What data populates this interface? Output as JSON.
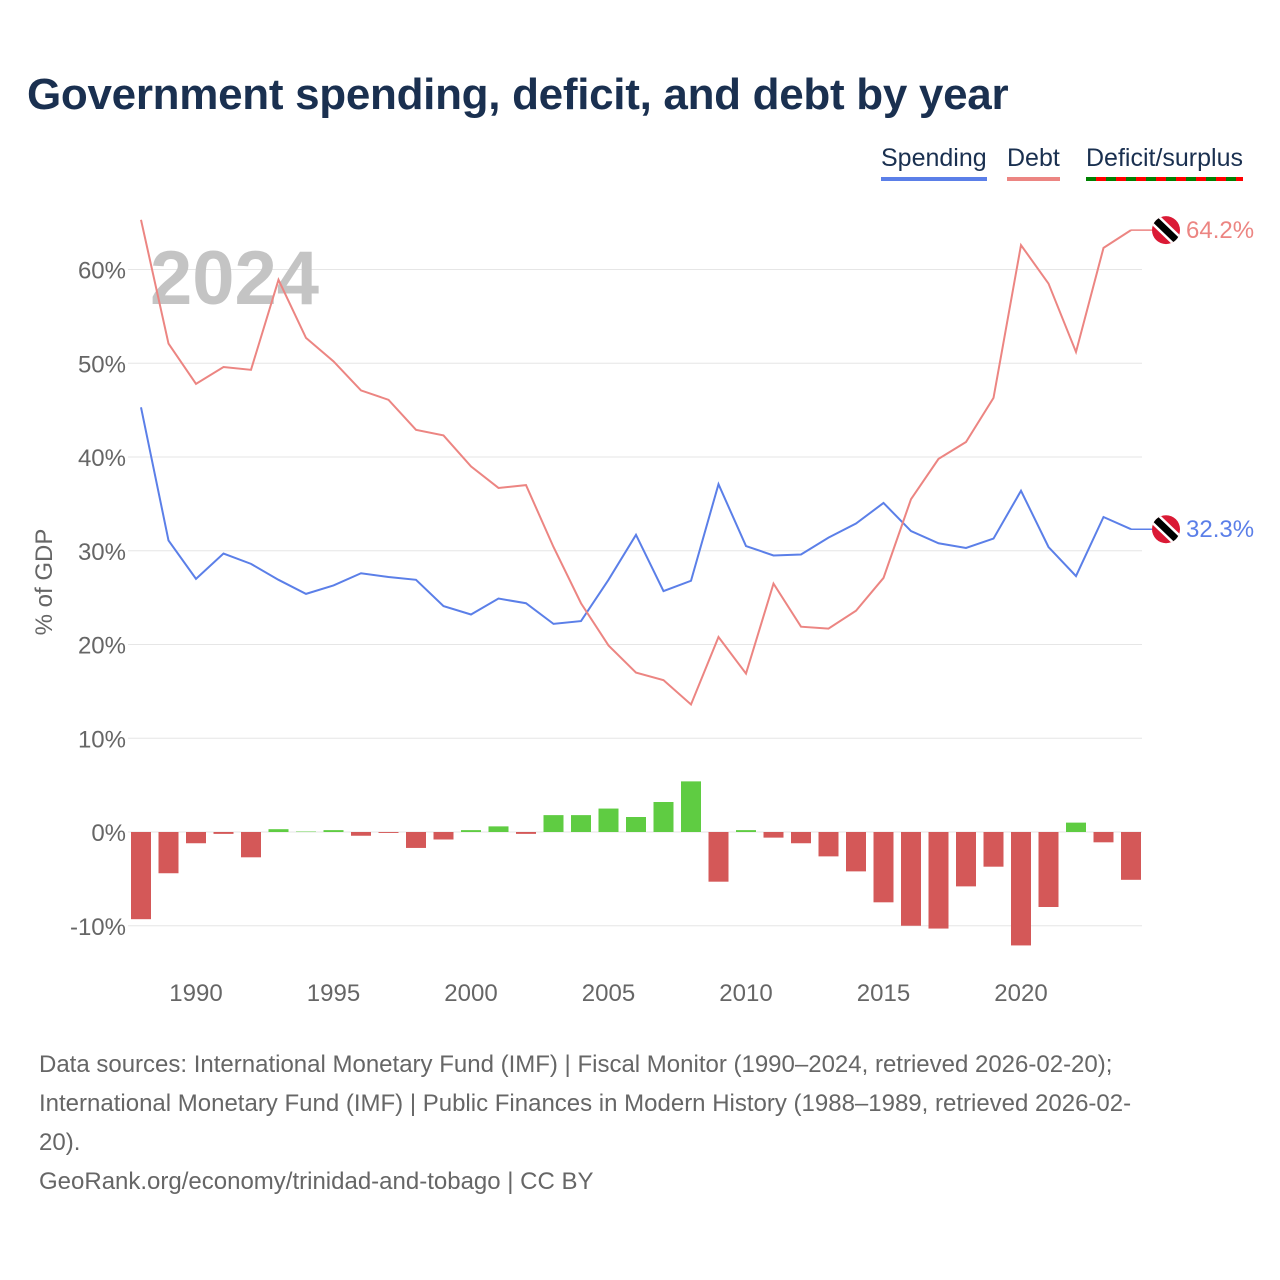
{
  "title": "Government spending, deficit, and debt by year",
  "legend": {
    "spending": "Spending",
    "debt": "Debt",
    "deficit": "Deficit/surplus"
  },
  "year_watermark": "2024",
  "end_labels": {
    "debt": "64.2%",
    "spending": "32.3%"
  },
  "source_lines": [
    "Data sources: International Monetary Fund (IMF) | Fiscal Monitor (1990–2024, retrieved 2026-02-20);",
    "International Monetary Fund (IMF) | Public Finances in Modern History (1988–1989, retrieved 2026-02-",
    "20).",
    "GeoRank.org/economy/trinidad-and-tobago | CC BY"
  ],
  "colors": {
    "spending": "#5b7fe8",
    "debt": "#ec8582",
    "surplus": "#5fcc42",
    "deficit": "#d45858",
    "title": "#1a3050"
  },
  "chart_data": {
    "type": "line+bar",
    "ylabel": "% of GDP",
    "ylim": [
      -15,
      67
    ],
    "yticks": [
      -10,
      0,
      10,
      20,
      30,
      40,
      50,
      60
    ],
    "ytick_labels": [
      "-10%",
      "0%",
      "10%",
      "20%",
      "30%",
      "40%",
      "50%",
      "60%"
    ],
    "xticks": [
      1990,
      1995,
      2000,
      2005,
      2010,
      2015,
      2020
    ],
    "xtick_labels": [
      "1990",
      "1995",
      "2000",
      "2005",
      "2010",
      "2015",
      "2020"
    ],
    "grid": true,
    "legend_placement": "top-right",
    "x": [
      1988,
      1989,
      1990,
      1991,
      1992,
      1993,
      1994,
      1995,
      1996,
      1997,
      1998,
      1999,
      2000,
      2001,
      2002,
      2003,
      2004,
      2005,
      2006,
      2007,
      2008,
      2009,
      2010,
      2011,
      2012,
      2013,
      2014,
      2015,
      2016,
      2017,
      2018,
      2019,
      2020,
      2021,
      2022,
      2023,
      2024
    ],
    "series": [
      {
        "name": "Spending",
        "type": "line",
        "values": [
          45.3,
          31.1,
          27.0,
          29.7,
          28.6,
          26.9,
          25.4,
          26.3,
          27.6,
          27.2,
          26.9,
          24.1,
          23.2,
          24.9,
          24.4,
          22.2,
          22.5,
          26.9,
          31.7,
          25.7,
          26.8,
          37.1,
          30.5,
          29.5,
          29.6,
          31.4,
          32.9,
          35.1,
          32.1,
          30.8,
          30.3,
          31.3,
          36.4,
          30.4,
          27.3,
          33.6,
          32.3
        ]
      },
      {
        "name": "Debt",
        "type": "line",
        "values": [
          65.3,
          52.1,
          47.8,
          49.6,
          49.3,
          58.9,
          52.7,
          50.2,
          47.1,
          46.1,
          42.9,
          42.3,
          39.0,
          36.7,
          37.0,
          30.4,
          24.4,
          19.9,
          17.0,
          16.2,
          13.6,
          20.8,
          16.9,
          26.5,
          21.9,
          21.7,
          23.6,
          27.1,
          35.5,
          39.8,
          41.6,
          46.3,
          62.6,
          58.5,
          51.2,
          62.3,
          64.2
        ]
      },
      {
        "name": "Deficit/surplus",
        "type": "bar",
        "values": [
          -9.3,
          -4.4,
          -1.2,
          -0.2,
          -2.7,
          0.3,
          0.05,
          0.2,
          -0.4,
          -0.1,
          -1.7,
          -0.8,
          0.2,
          0.6,
          -0.2,
          1.8,
          1.8,
          2.5,
          1.6,
          3.2,
          5.4,
          -5.3,
          0.2,
          -0.6,
          -1.2,
          -2.6,
          -4.2,
          -7.5,
          -10.0,
          -10.3,
          -5.8,
          -3.7,
          -12.1,
          -8.0,
          1.0,
          -1.1,
          -5.1
        ]
      }
    ]
  }
}
